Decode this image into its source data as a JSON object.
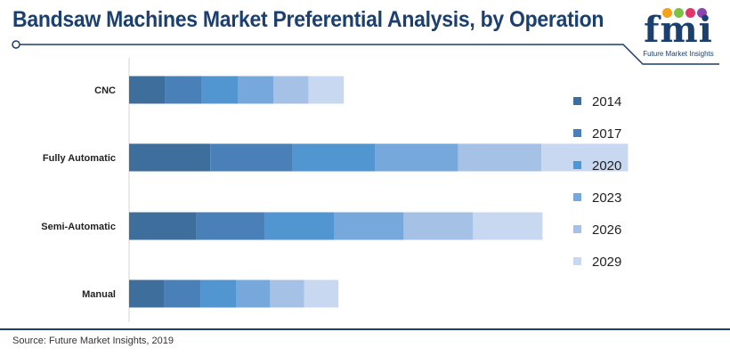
{
  "header": {
    "title": "Bandsaw Machines Market Preferential Analysis, by Operation"
  },
  "logo": {
    "text": "fmi",
    "subtitle": "Future Market Insights",
    "dot_colors": [
      "#f4a21b",
      "#7cc242",
      "#e0376b",
      "#8e44ad"
    ]
  },
  "chart_data": {
    "type": "bar",
    "orientation": "horizontal",
    "stacked": true,
    "title": "Bandsaw Machines Market Preferential Analysis, by Operation",
    "xlabel": "",
    "ylabel": "",
    "categories": [
      "CNC",
      "Fully Automatic",
      "Semi-Automatic",
      "Manual"
    ],
    "series": [
      {
        "name": "2014",
        "color": "#3e6e9c",
        "values": [
          34,
          76,
          63,
          33
        ]
      },
      {
        "name": "2017",
        "color": "#4a80b8",
        "values": [
          34,
          77,
          64,
          34
        ]
      },
      {
        "name": "2020",
        "color": "#5195d1",
        "values": [
          34,
          77,
          65,
          33
        ]
      },
      {
        "name": "2023",
        "color": "#77a8dc",
        "values": [
          33,
          78,
          65,
          32
        ]
      },
      {
        "name": "2026",
        "color": "#a6c1e6",
        "values": [
          33,
          78,
          65,
          32
        ]
      },
      {
        "name": "2029",
        "color": "#c8d8f0",
        "values": [
          33,
          81,
          65,
          32
        ]
      }
    ],
    "xlim": [
      0,
      500
    ],
    "grid": false,
    "legend_position": "right"
  },
  "footer": {
    "source": "Source: Future Market Insights, 2019"
  }
}
